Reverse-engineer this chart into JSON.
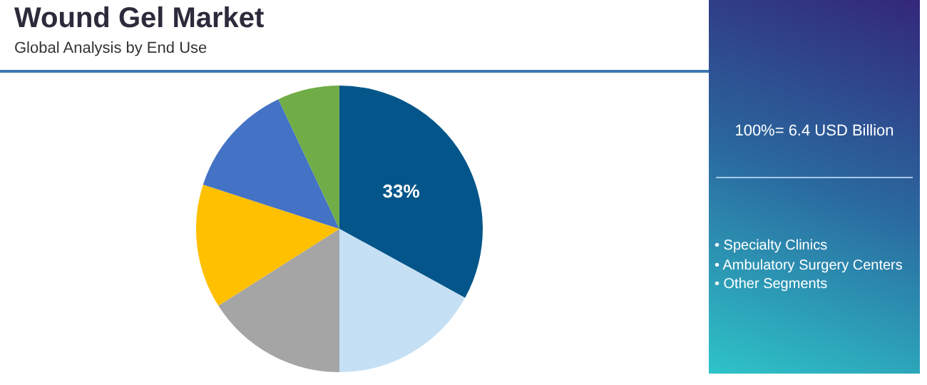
{
  "chart_data": {
    "type": "pie",
    "title": "Wound Gel Market",
    "subtitle": "Global Analysis by End Use",
    "categories": [
      null,
      null,
      null,
      null,
      null,
      null
    ],
    "values": [
      33,
      17,
      16,
      14,
      13,
      7
    ],
    "colors": [
      "#04568a",
      "#c5e0f4",
      "#a5a5a5",
      "#ffc000",
      "#4472c4",
      "#70ad47"
    ],
    "value_labels": [
      "33%",
      null,
      null,
      null,
      null,
      null
    ],
    "annotations": [
      "100%= 6.4 USD Billion",
      "• Specialty Clinics",
      "• Ambulatory Surgery Centers",
      "• Other Segments"
    ],
    "legend": false
  }
}
